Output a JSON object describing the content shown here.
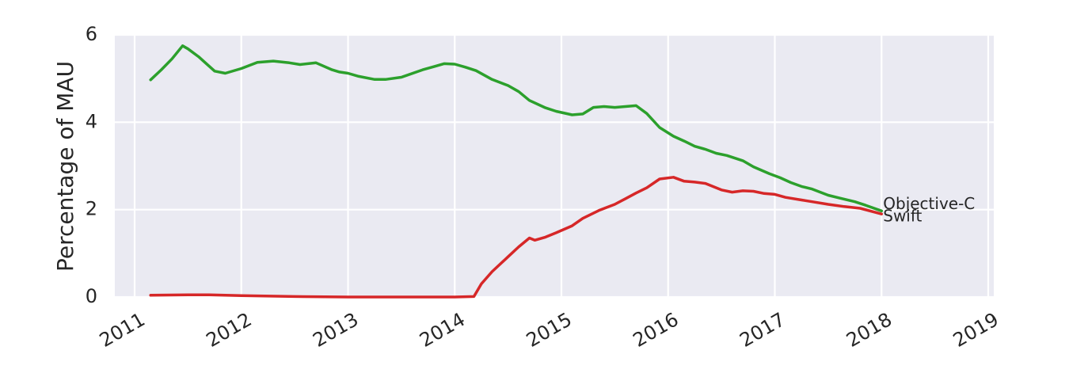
{
  "chart_data": {
    "type": "line",
    "title": "",
    "xlabel": "",
    "ylabel": "Percentage of MAU",
    "xlim": [
      2011.0,
      2019.0
    ],
    "ylim": [
      0,
      6
    ],
    "grid": true,
    "x_ticks": [
      "2011",
      "2012",
      "2013",
      "2014",
      "2015",
      "2016",
      "2017",
      "2018",
      "2019"
    ],
    "y_ticks": [
      "0",
      "2",
      "4",
      "6"
    ],
    "colors": {
      "background": "#eaeaf2",
      "grid": "#ffffff",
      "Objective-C": "#2ca02c",
      "Swift": "#d62728"
    },
    "series": [
      {
        "name": "Objective-C",
        "x": [
          2011.15,
          2011.25,
          2011.35,
          2011.45,
          2011.5,
          2011.6,
          2011.75,
          2011.85,
          2012.0,
          2012.15,
          2012.3,
          2012.45,
          2012.55,
          2012.7,
          2012.85,
          2012.92,
          2013.0,
          2013.1,
          2013.25,
          2013.35,
          2013.5,
          2013.7,
          2013.8,
          2013.9,
          2014.0,
          2014.1,
          2014.2,
          2014.35,
          2014.5,
          2014.6,
          2014.7,
          2014.85,
          2014.95,
          2015.1,
          2015.2,
          2015.3,
          2015.4,
          2015.5,
          2015.6,
          2015.7,
          2015.8,
          2015.92,
          2016.05,
          2016.15,
          2016.25,
          2016.35,
          2016.45,
          2016.55,
          2016.7,
          2016.8,
          2016.95,
          2017.05,
          2017.15,
          2017.25,
          2017.35,
          2017.5,
          2017.6,
          2017.75,
          2017.85,
          2018.0
        ],
        "values": [
          4.97,
          5.2,
          5.45,
          5.75,
          5.68,
          5.5,
          5.17,
          5.12,
          5.23,
          5.37,
          5.4,
          5.36,
          5.32,
          5.36,
          5.2,
          5.15,
          5.12,
          5.05,
          4.98,
          4.98,
          5.03,
          5.2,
          5.27,
          5.34,
          5.33,
          5.26,
          5.18,
          4.98,
          4.84,
          4.7,
          4.5,
          4.33,
          4.25,
          4.17,
          4.19,
          4.34,
          4.36,
          4.34,
          4.36,
          4.38,
          4.2,
          3.88,
          3.68,
          3.57,
          3.45,
          3.38,
          3.29,
          3.24,
          3.12,
          2.98,
          2.82,
          2.73,
          2.62,
          2.53,
          2.47,
          2.33,
          2.27,
          2.18,
          2.1,
          1.97
        ]
      },
      {
        "name": "Swift",
        "x": [
          2011.15,
          2011.5,
          2011.7,
          2012.0,
          2012.5,
          2013.0,
          2013.5,
          2014.0,
          2014.18,
          2014.25,
          2014.35,
          2014.5,
          2014.6,
          2014.7,
          2014.75,
          2014.85,
          2014.95,
          2015.1,
          2015.2,
          2015.35,
          2015.5,
          2015.6,
          2015.7,
          2015.8,
          2015.92,
          2016.05,
          2016.15,
          2016.25,
          2016.35,
          2016.5,
          2016.6,
          2016.7,
          2016.8,
          2016.9,
          2017.0,
          2017.1,
          2017.25,
          2017.35,
          2017.5,
          2017.65,
          2017.8,
          2018.0
        ],
        "values": [
          0.04,
          0.05,
          0.05,
          0.03,
          0.01,
          0.0,
          0.0,
          0.0,
          0.01,
          0.3,
          0.58,
          0.92,
          1.15,
          1.35,
          1.3,
          1.37,
          1.47,
          1.63,
          1.8,
          1.98,
          2.12,
          2.25,
          2.38,
          2.5,
          2.7,
          2.74,
          2.65,
          2.63,
          2.6,
          2.45,
          2.4,
          2.43,
          2.42,
          2.37,
          2.35,
          2.28,
          2.22,
          2.18,
          2.12,
          2.07,
          2.03,
          1.9
        ]
      }
    ]
  }
}
